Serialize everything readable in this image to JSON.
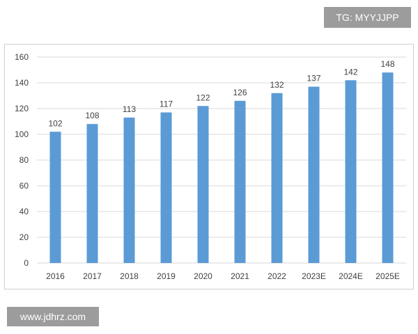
{
  "watermarks": {
    "top_right": "TG: MYYJJPP",
    "bottom_left": "www.jdhrz.com"
  },
  "chart_data": {
    "type": "bar",
    "categories": [
      "2016",
      "2017",
      "2018",
      "2019",
      "2020",
      "2021",
      "2022",
      "2023E",
      "2024E",
      "2025E"
    ],
    "values": [
      102,
      108,
      113,
      117,
      122,
      126,
      132,
      137,
      142,
      148
    ],
    "data_labels": [
      "102",
      "108",
      "113",
      "117",
      "122",
      "126",
      "132",
      "137",
      "142",
      "148"
    ],
    "y_ticks": [
      "0",
      "20",
      "40",
      "60",
      "80",
      "100",
      "120",
      "140",
      "160"
    ],
    "ylim": [
      0,
      160
    ],
    "grid": true,
    "bar_color": "#5b9bd5",
    "grid_color": "#d9d9d9",
    "title": "",
    "xlabel": "",
    "ylabel": ""
  }
}
